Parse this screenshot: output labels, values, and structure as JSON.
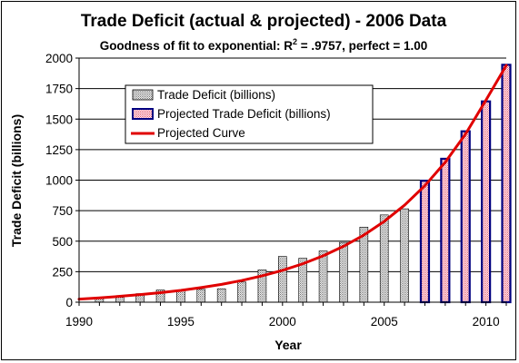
{
  "chart_data": {
    "type": "bar",
    "title": "Trade Deficit (actual & projected) - 2006 Data",
    "subtitle_pre": "Goodness of fit to exponential: R",
    "subtitle_sup": "2",
    "subtitle_post": " = .9757, perfect = 1.00",
    "xlabel": "Year",
    "ylabel": "Trade Deficit (billions)",
    "xlim": [
      1990,
      2011
    ],
    "ylim": [
      0,
      2000
    ],
    "x_ticks": [
      "1990",
      "1995",
      "2000",
      "2005",
      "2010"
    ],
    "y_ticks": [
      "0",
      "250",
      "500",
      "750",
      "1000",
      "1250",
      "1500",
      "1750",
      "2000"
    ],
    "grid": "horizontal",
    "legend_position": "upper-left",
    "series": [
      {
        "name": "Trade Deficit (billions)",
        "kind": "bar",
        "color": "#b0b0b0",
        "x": [
          1991,
          1992,
          1993,
          1994,
          1995,
          1996,
          1997,
          1998,
          1999,
          2000,
          2001,
          2002,
          2003,
          2004,
          2005,
          2006
        ],
        "values": [
          30,
          40,
          70,
          100,
          100,
          105,
          110,
          165,
          265,
          375,
          360,
          420,
          490,
          615,
          715,
          765
        ]
      },
      {
        "name": "Projected Trade Deficit (billions)",
        "kind": "bar",
        "color": "#ffb0b0",
        "border": "#000080",
        "x": [
          2007,
          2008,
          2009,
          2010,
          2011
        ],
        "values": [
          995,
          1175,
          1400,
          1645,
          1945
        ]
      },
      {
        "name": "Projected Curve",
        "kind": "line",
        "color": "#e00000",
        "x": [
          1990,
          1991,
          1992,
          1993,
          1994,
          1995,
          1996,
          1997,
          1998,
          1999,
          2000,
          2001,
          2002,
          2003,
          2004,
          2005,
          2006,
          2007,
          2008,
          2009,
          2010,
          2011
        ],
        "values": [
          25,
          35,
          48,
          62,
          78,
          97,
          120,
          146,
          178,
          216,
          261,
          315,
          380,
          458,
          550,
          662,
          795,
          955,
          1147,
          1378,
          1655,
          1940
        ]
      }
    ]
  }
}
